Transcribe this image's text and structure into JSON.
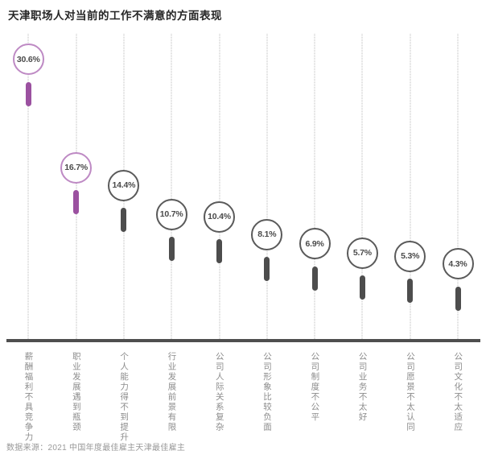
{
  "title": "天津职场人对当前的工作不满意的方面表现",
  "source": "数据来源：2021 中国年度最佳雇主天津最佳雇主",
  "chart_data": {
    "type": "lollipop-bar",
    "title": "天津职场人对当前的工作不满意的方面表现",
    "categories": [
      "薪酬福利不具竞争力",
      "职业发展遇到瓶颈",
      "个人能力得不到提升",
      "行业发展前景有限",
      "公司人际关系复杂",
      "公司形象比较负面",
      "公司制度不公平",
      "公司业务不太好",
      "公司愿景不太认同",
      "公司文化不太适应"
    ],
    "values": [
      30.6,
      16.7,
      14.4,
      10.7,
      10.4,
      8.1,
      6.9,
      5.7,
      5.3,
      4.3
    ],
    "value_labels": [
      "30.6%",
      "16.7%",
      "14.4%",
      "10.7%",
      "10.4%",
      "8.1%",
      "6.9%",
      "5.7%",
      "5.3%",
      "4.3%"
    ],
    "highlight_indices": [
      0,
      1
    ],
    "xlabel": "",
    "ylabel": "",
    "legend": "none",
    "grid": "vertical-dotted",
    "colors": {
      "highlight_circle_stroke": "#be8ac4",
      "highlight_bar": "#9b51a0",
      "default_circle_stroke": "#5a5a5a",
      "default_bar": "#4d4d4d",
      "value_text": "#4a4a4a",
      "category_text": "#8c8c8c",
      "axis": "#4f4f4f",
      "gridline": "#b8b8b8",
      "title_text": "#262626",
      "source_text": "#999999"
    }
  }
}
